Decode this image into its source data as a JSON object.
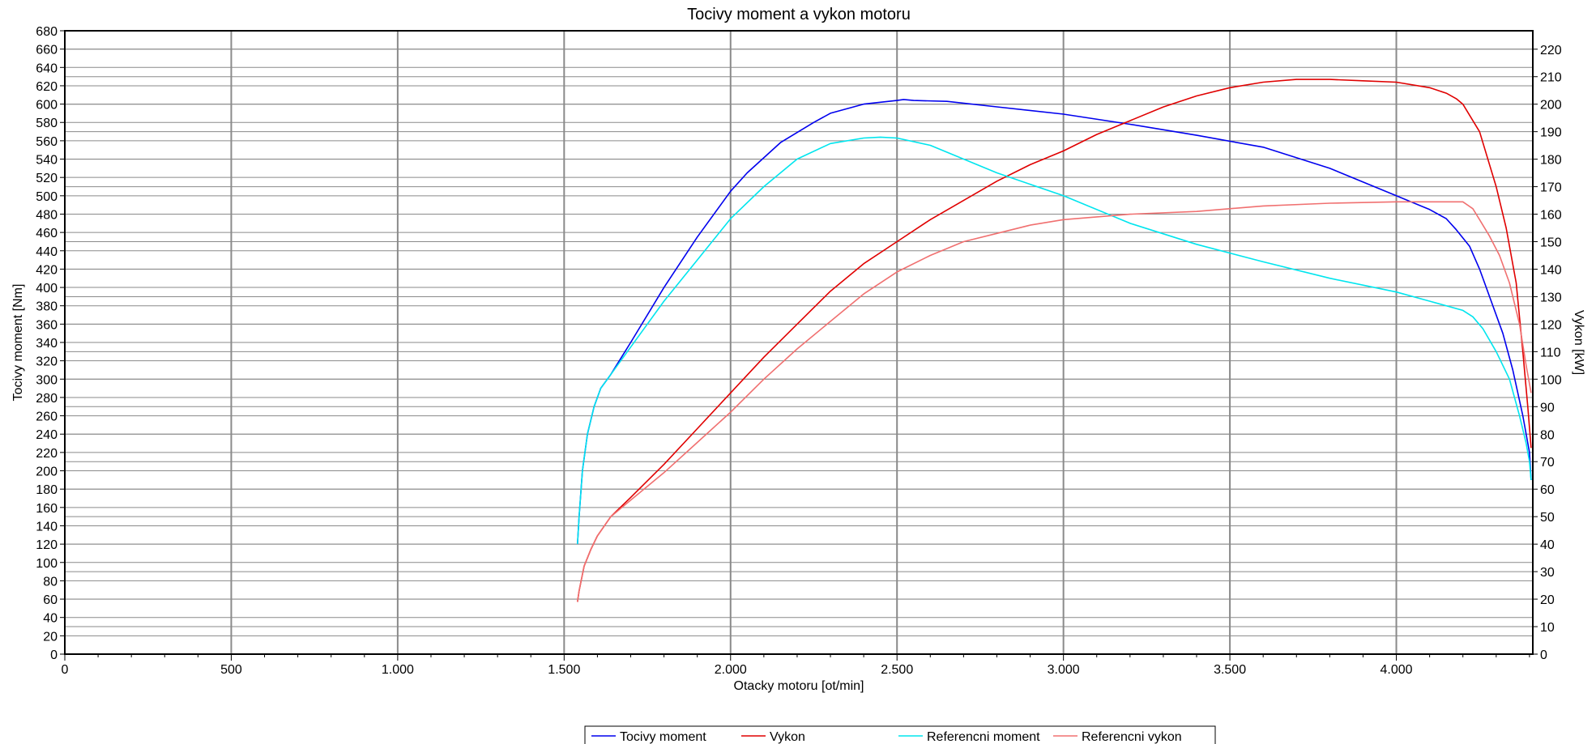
{
  "chart_data": {
    "type": "line",
    "title": "Tocivy moment a vykon motoru",
    "xlabel": "Otacky motoru [ot/min]",
    "ylabel": "Tocivy moment [Nm]",
    "y2label": "Vykon [kW]",
    "xlim": [
      0,
      4410
    ],
    "ylim": [
      0,
      680
    ],
    "y2lim": [
      0,
      226.7
    ],
    "x_ticks": [
      0,
      500,
      1000,
      1500,
      2000,
      2500,
      3000,
      3500,
      4000
    ],
    "x_tick_labels": [
      "0",
      "500",
      "1.000",
      "1.500",
      "2.000",
      "2.500",
      "3.000",
      "3.500",
      "4.000"
    ],
    "y_ticks": [
      0,
      20,
      40,
      60,
      80,
      100,
      120,
      140,
      160,
      180,
      200,
      220,
      240,
      260,
      280,
      300,
      320,
      340,
      360,
      380,
      400,
      420,
      440,
      460,
      480,
      500,
      520,
      540,
      560,
      580,
      600,
      620,
      640,
      660,
      680
    ],
    "y2_ticks": [
      0,
      10,
      20,
      30,
      40,
      50,
      60,
      70,
      80,
      90,
      100,
      110,
      120,
      130,
      140,
      150,
      160,
      170,
      180,
      190,
      200,
      210,
      220
    ],
    "grid": true,
    "legend_position": "bottom",
    "series": [
      {
        "name": "Tocivy moment",
        "axis": "left",
        "color": "#0000ee",
        "x": [
          1540,
          1545,
          1555,
          1570,
          1590,
          1610,
          1640,
          1700,
          1800,
          1900,
          2000,
          2050,
          2150,
          2250,
          2300,
          2400,
          2500,
          2520,
          2550,
          2650,
          2800,
          3000,
          3200,
          3400,
          3600,
          3800,
          4000,
          4100,
          4150,
          4180,
          4220,
          4250,
          4280,
          4320,
          4350,
          4380,
          4400,
          4405
        ],
        "y": [
          120,
          150,
          200,
          240,
          270,
          290,
          305,
          340,
          400,
          455,
          505,
          525,
          558,
          580,
          590,
          600,
          604,
          605,
          604,
          603,
          597,
          589,
          578,
          566,
          553,
          530,
          500,
          485,
          475,
          463,
          445,
          420,
          390,
          350,
          310,
          260,
          220,
          190
        ]
      },
      {
        "name": "Vykon",
        "axis": "right",
        "color": "#e00000",
        "x": [
          1540,
          1545,
          1560,
          1580,
          1600,
          1640,
          1700,
          1800,
          1900,
          2000,
          2100,
          2200,
          2300,
          2400,
          2500,
          2600,
          2700,
          2800,
          2900,
          3000,
          3100,
          3200,
          3300,
          3400,
          3500,
          3600,
          3700,
          3800,
          3900,
          4000,
          4100,
          4150,
          4180,
          4200,
          4250,
          4300,
          4330,
          4360,
          4380,
          4395,
          4405
        ],
        "y": [
          19,
          23,
          32,
          38,
          43,
          50,
          57,
          69,
          82,
          95,
          108,
          120,
          132,
          142,
          150,
          158,
          165,
          172,
          178,
          183,
          189,
          194,
          199,
          203,
          206,
          208,
          209,
          209,
          208.5,
          208,
          206,
          204,
          202,
          200,
          190,
          170,
          155,
          135,
          110,
          90,
          75
        ]
      },
      {
        "name": "Referencni moment",
        "axis": "left",
        "color": "#00e5ee",
        "x": [
          1540,
          1545,
          1555,
          1570,
          1590,
          1610,
          1640,
          1700,
          1800,
          1900,
          2000,
          2100,
          2200,
          2300,
          2400,
          2450,
          2500,
          2600,
          2700,
          2800,
          3000,
          3200,
          3400,
          3600,
          3800,
          4000,
          4100,
          4200,
          4230,
          4260,
          4300,
          4340,
          4370,
          4390,
          4400,
          4405
        ],
        "y": [
          120,
          150,
          200,
          240,
          270,
          290,
          305,
          335,
          385,
          430,
          475,
          510,
          540,
          557,
          563,
          564,
          563,
          555,
          540,
          525,
          500,
          470,
          447,
          428,
          410,
          395,
          385,
          375,
          368,
          355,
          330,
          300,
          260,
          230,
          210,
          190
        ]
      },
      {
        "name": "Referencni vykon",
        "axis": "right",
        "color": "#f07070",
        "x": [
          1540,
          1545,
          1560,
          1580,
          1600,
          1640,
          1700,
          1800,
          1900,
          2000,
          2100,
          2200,
          2300,
          2400,
          2500,
          2600,
          2700,
          2800,
          2900,
          3000,
          3200,
          3400,
          3600,
          3800,
          4000,
          4200,
          4230,
          4250,
          4280,
          4310,
          4340,
          4370,
          4390,
          4405
        ],
        "y": [
          19,
          23,
          32,
          38,
          43,
          50,
          56,
          66,
          77,
          88,
          100,
          111,
          121,
          131,
          139,
          145,
          150,
          153,
          156,
          158,
          160,
          161,
          163,
          164,
          164.5,
          164.5,
          162,
          158,
          152,
          145,
          135,
          120,
          105,
          95
        ]
      }
    ]
  }
}
